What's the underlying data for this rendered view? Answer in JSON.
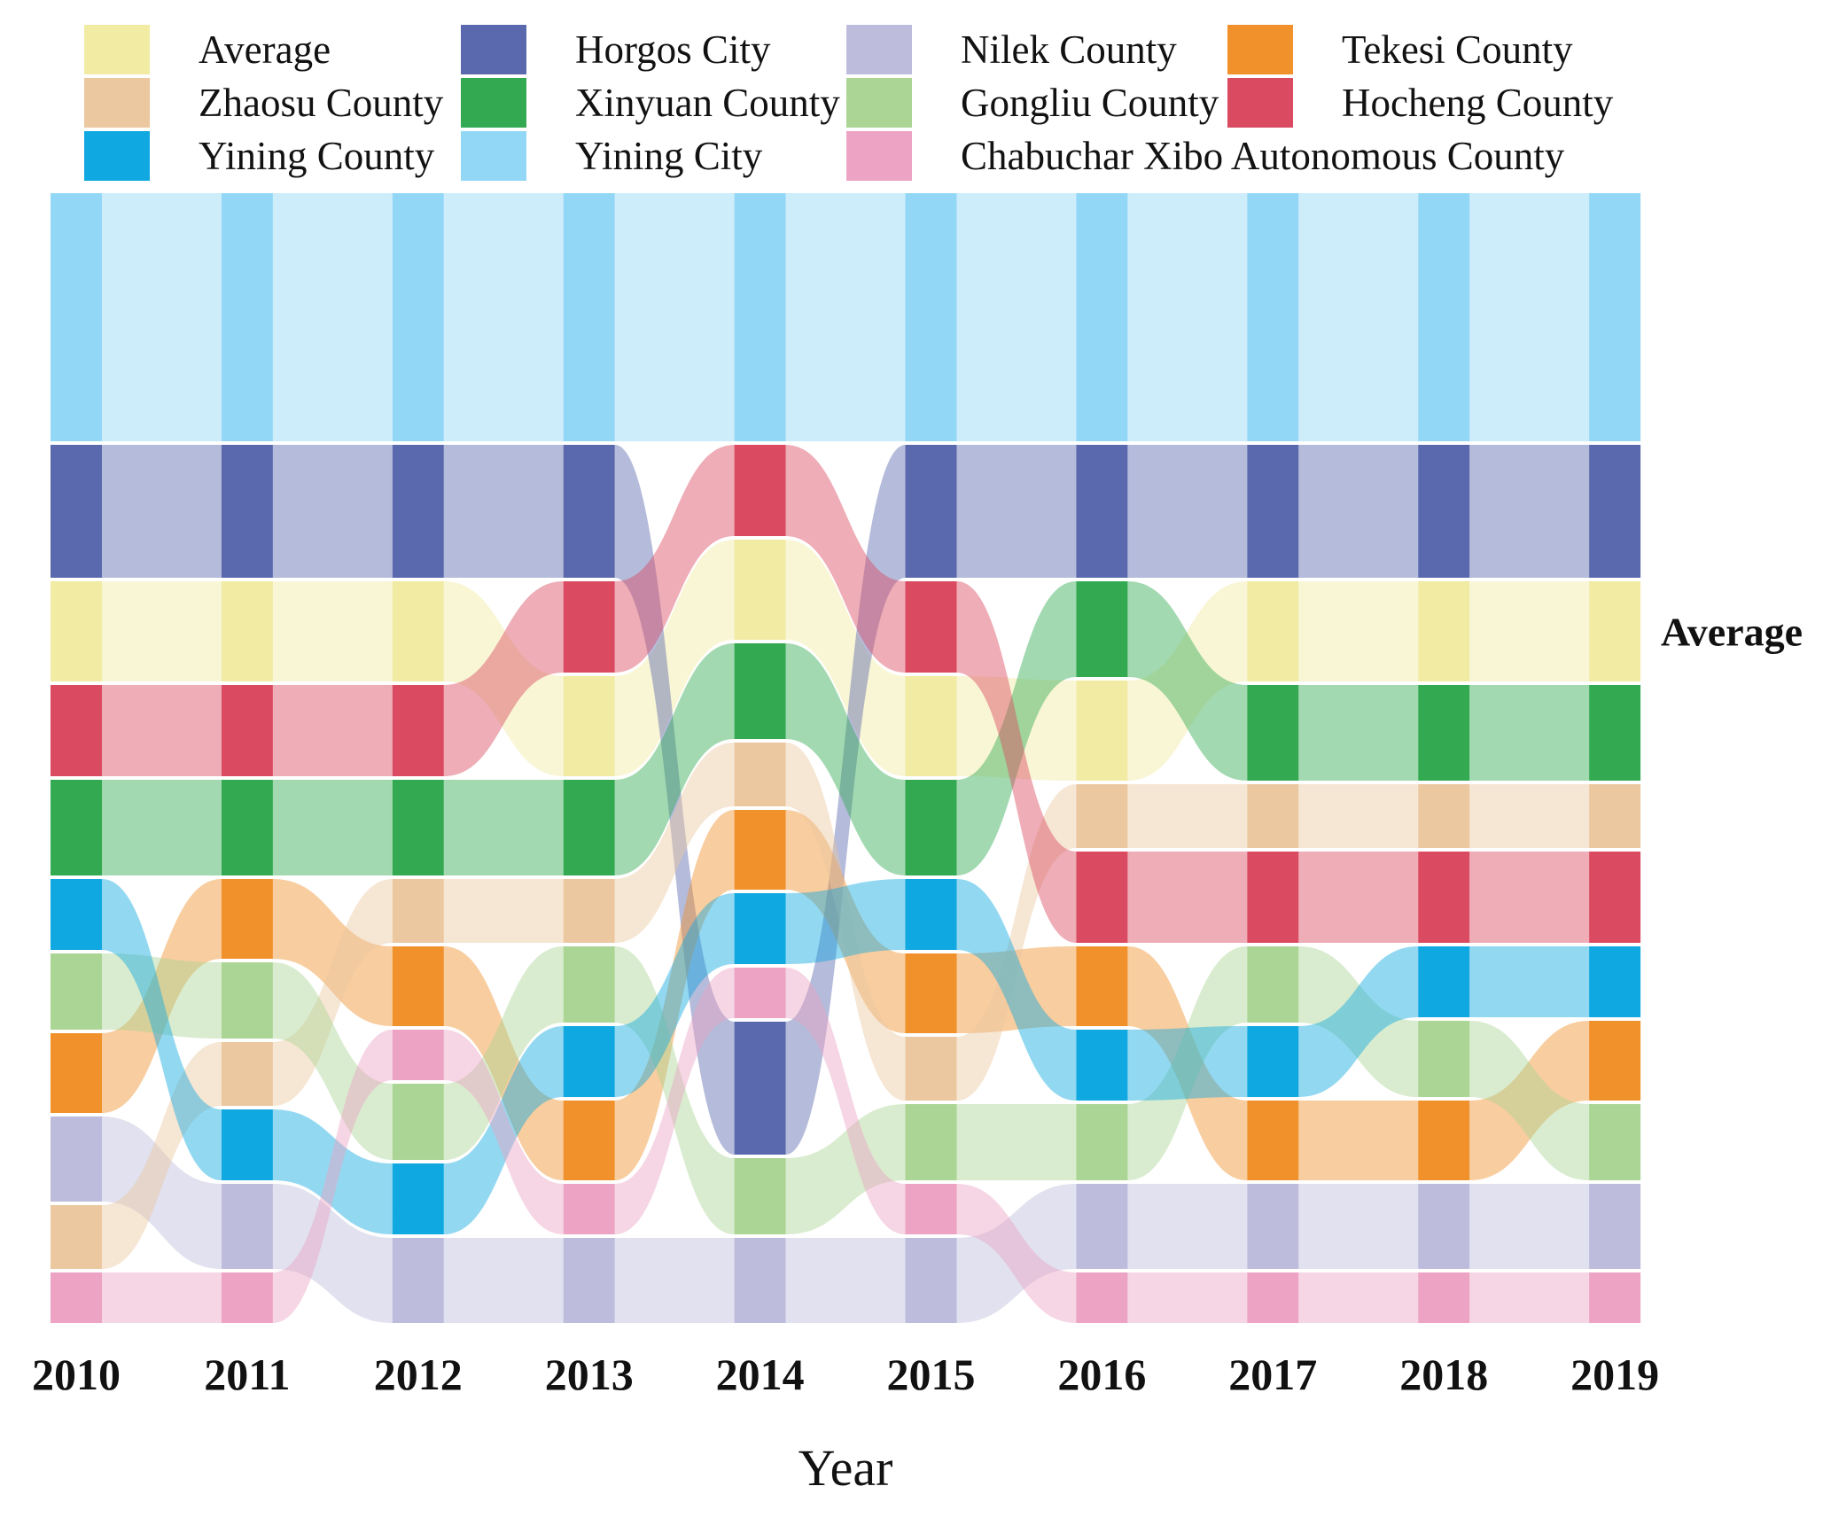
{
  "chart_data": {
    "type": "bump",
    "title": "",
    "xlabel": "Year",
    "x": [
      2010,
      2011,
      2012,
      2013,
      2014,
      2015,
      2016,
      2017,
      2018,
      2019
    ],
    "right_annotation": "Average",
    "rank_convention": "1 = top position of the stacked ranking for that year",
    "legend_position": "top",
    "series": [
      {
        "name": "Average",
        "color": "#f1eba3",
        "thickness": 113,
        "ranks": [
          3,
          3,
          3,
          4,
          3,
          4,
          4,
          3,
          3,
          3
        ]
      },
      {
        "name": "Horgos City",
        "color": "#5a68ad",
        "thickness": 150,
        "ranks": [
          2,
          2,
          2,
          2,
          9,
          2,
          2,
          2,
          2,
          2
        ]
      },
      {
        "name": "Nilek County",
        "color": "#bdbcdc",
        "thickness": 96,
        "ranks": [
          9,
          10,
          11,
          11,
          11,
          11,
          10,
          10,
          10,
          10
        ]
      },
      {
        "name": "Tekesi County",
        "color": "#f0912b",
        "thickness": 90,
        "ranks": [
          8,
          6,
          7,
          9,
          6,
          7,
          7,
          9,
          9,
          8
        ]
      },
      {
        "name": "Zhaosu County",
        "color": "#ecc8a0",
        "thickness": 72,
        "ranks": [
          10,
          8,
          6,
          6,
          5,
          8,
          5,
          5,
          5,
          5
        ]
      },
      {
        "name": "Xinyuan County",
        "color": "#33aa51",
        "thickness": 108,
        "ranks": [
          5,
          5,
          5,
          5,
          4,
          5,
          3,
          4,
          4,
          4
        ]
      },
      {
        "name": "Gongliu County",
        "color": "#abd595",
        "thickness": 86,
        "ranks": [
          7,
          7,
          9,
          7,
          10,
          9,
          9,
          7,
          8,
          9
        ]
      },
      {
        "name": "Hocheng County",
        "color": "#da4a60",
        "thickness": 103,
        "ranks": [
          4,
          4,
          4,
          3,
          2,
          3,
          6,
          6,
          6,
          6
        ]
      },
      {
        "name": "Yining County",
        "color": "#10a8e0",
        "thickness": 80,
        "ranks": [
          6,
          9,
          10,
          8,
          7,
          6,
          8,
          8,
          7,
          7
        ]
      },
      {
        "name": "Yining City",
        "color": "#93d7f7",
        "thickness": 280,
        "ranks": [
          1,
          1,
          1,
          1,
          1,
          1,
          1,
          1,
          1,
          1
        ]
      },
      {
        "name": "Chabuchar Xibo Autonomous County",
        "color": "#eca3c4",
        "thickness": 57,
        "ranks": [
          11,
          11,
          8,
          10,
          8,
          10,
          11,
          11,
          11,
          11
        ]
      }
    ]
  },
  "axis": {
    "year_labels": [
      "2010",
      "2011",
      "2012",
      "2013",
      "2014",
      "2015",
      "2016",
      "2017",
      "2018",
      "2019"
    ],
    "xlabel": "Year"
  },
  "right_label": "Average",
  "legend": {
    "items_per_row": 4,
    "labels": [
      "Average",
      "Horgos City",
      "Nilek County",
      "Tekesi County",
      "Zhaosu County",
      "Xinyuan County",
      "Gongliu County",
      "Hocheng County",
      "Yining County",
      "Yining City",
      "Chabuchar Xibo Autonomous County"
    ]
  }
}
